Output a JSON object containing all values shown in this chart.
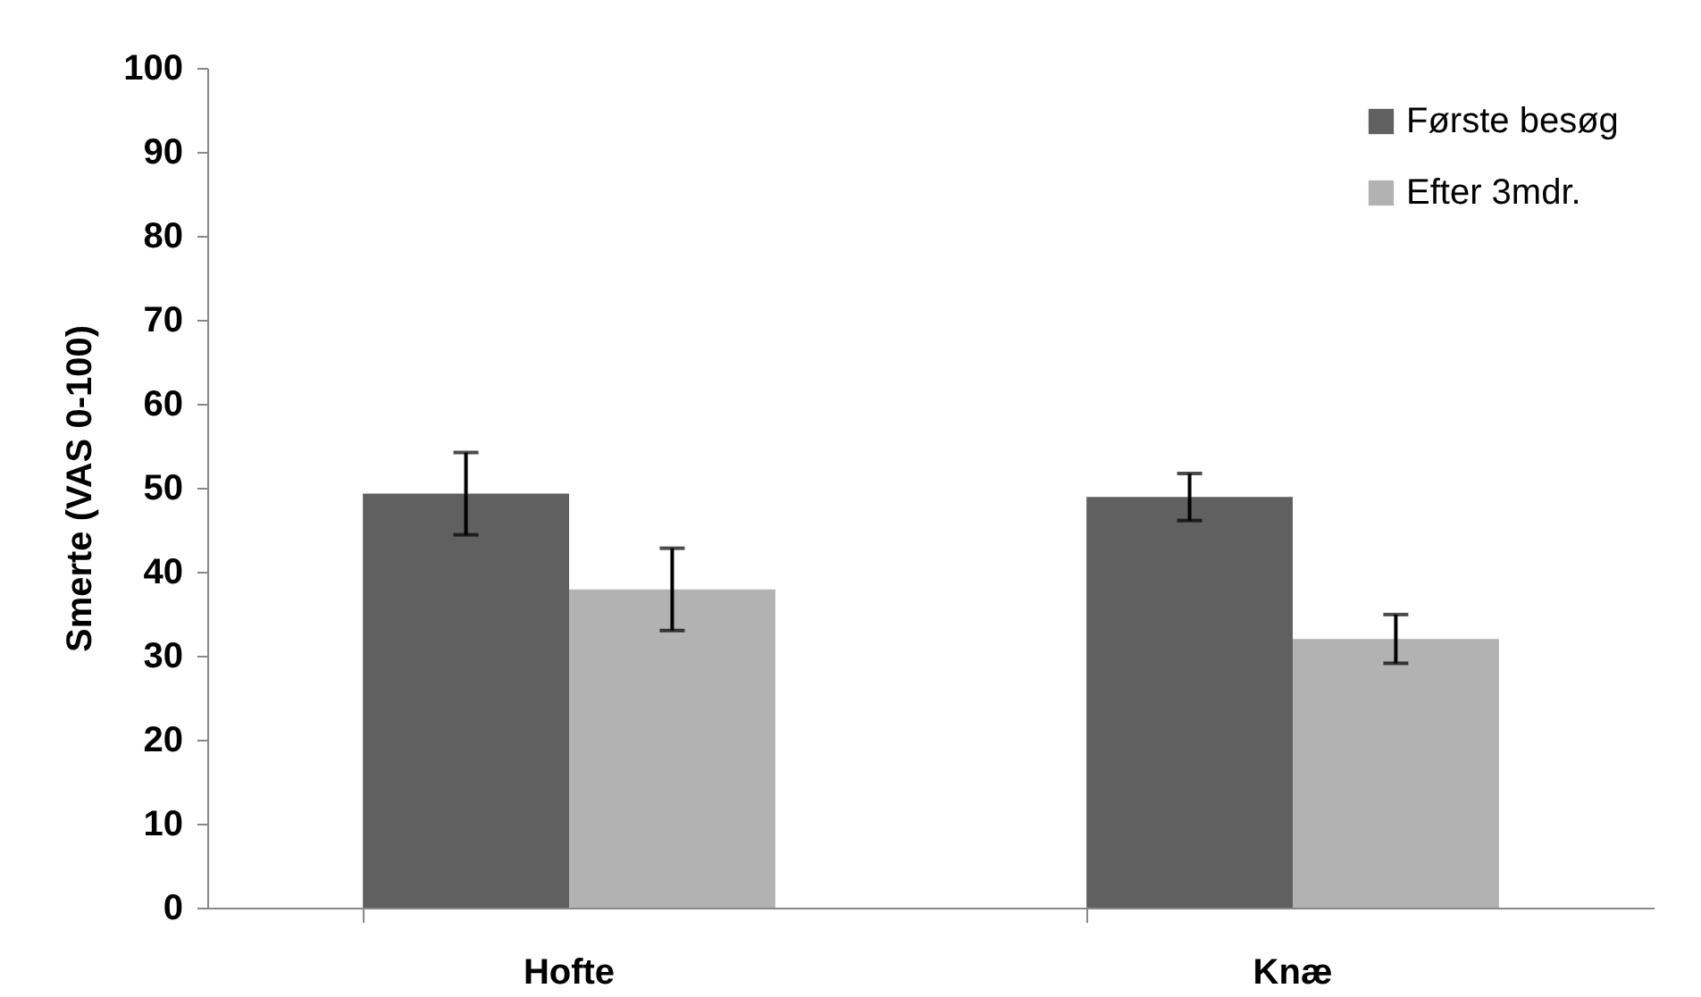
{
  "chart_data": {
    "type": "bar",
    "ylabel": "Smerte (VAS 0-100)",
    "categories": [
      "Hofte",
      "Knæ"
    ],
    "series": [
      {
        "name": "Første besøg",
        "color": "#606060",
        "values": [
          49.3,
          48.9
        ],
        "errors": [
          4.9,
          2.8
        ]
      },
      {
        "name": "Efter 3mdr.",
        "color": "#b2b2b2",
        "values": [
          37.9,
          32.0
        ],
        "errors": [
          4.9,
          2.9
        ]
      }
    ],
    "ylim": [
      0,
      100
    ],
    "yticks": [
      0,
      10,
      20,
      30,
      40,
      50,
      60,
      70,
      80,
      90,
      100
    ],
    "grid": false,
    "legend": "top right"
  }
}
